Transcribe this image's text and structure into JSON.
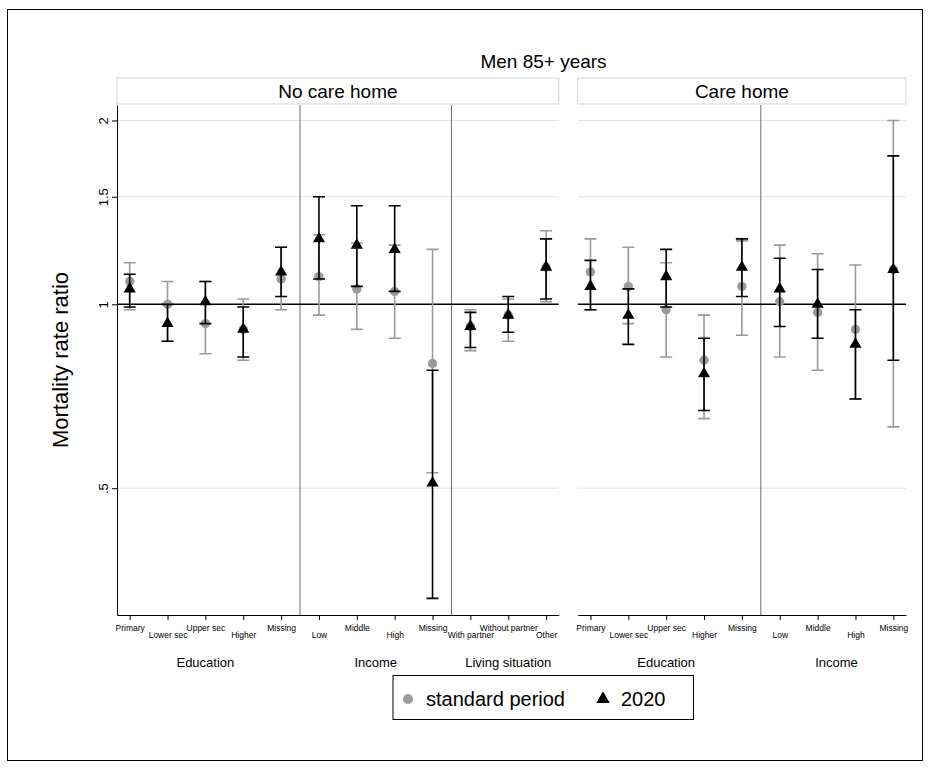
{
  "chart_data": {
    "type": "errorbar",
    "title": "Men 85+ years",
    "y_label": "Mortality rate ratio",
    "log": "y",
    "grid": true,
    "legend": "bottom",
    "ylim": [
      0.31,
      2.12
    ],
    "yticks": [
      {
        "value": 0.5,
        "label": ".5"
      },
      1,
      1.5,
      2
    ],
    "hline": 1,
    "series": [
      {
        "name": "standard period",
        "color": "#9a9a9a",
        "marker": "circle"
      },
      {
        "name": "2020",
        "color": "#000000",
        "marker": "triangle"
      }
    ],
    "panels": [
      {
        "title": "No care home",
        "groups": [
          {
            "label": "Education",
            "categories": [
              "Primary",
              "Lower sec",
              "Upper sec",
              "Higher",
              "Missing"
            ],
            "series": [
              {
                "values": [
                  1.09,
                  1.0,
                  0.93,
                  0.91,
                  1.1
                ],
                "lower": [
                  0.98,
                  0.87,
                  0.83,
                  0.81,
                  0.98
                ],
                "upper": [
                  1.17,
                  1.09,
                  1.09,
                  1.02,
                  1.24
                ]
              },
              {
                "values": [
                  1.06,
                  0.93,
                  1.01,
                  0.91,
                  1.13
                ],
                "lower": [
                  0.99,
                  0.87,
                  0.93,
                  0.82,
                  1.03
                ],
                "upper": [
                  1.12,
                  1.0,
                  1.09,
                  0.99,
                  1.24
                ]
              }
            ]
          },
          {
            "label": "Income",
            "categories": [
              "Low",
              "Middle",
              "High",
              "Missing"
            ],
            "series": [
              {
                "values": [
                  1.11,
                  1.06,
                  1.05,
                  0.8
                ],
                "lower": [
                  0.96,
                  0.91,
                  0.88,
                  0.53
                ],
                "upper": [
                  1.3,
                  1.26,
                  1.25,
                  1.23
                ]
              },
              {
                "values": [
                  1.28,
                  1.25,
                  1.23,
                  0.51
                ],
                "lower": [
                  1.1,
                  1.07,
                  1.05,
                  0.33
                ],
                "upper": [
                  1.5,
                  1.45,
                  1.45,
                  0.78
                ]
              }
            ]
          },
          {
            "label": "Living situation",
            "categories": [
              "With partner",
              "Without partner",
              "Other"
            ],
            "series": [
              {
                "values": [
                  0.92,
                  0.96,
                  1.15
                ],
                "lower": [
                  0.84,
                  0.87,
                  1.01
                ],
                "upper": [
                  0.98,
                  1.02,
                  1.32
                ]
              },
              {
                "values": [
                  0.92,
                  0.96,
                  1.15
                ],
                "lower": [
                  0.85,
                  0.9,
                  1.02
                ],
                "upper": [
                  0.97,
                  1.03,
                  1.28
                ]
              }
            ]
          }
        ]
      },
      {
        "title": "Care home",
        "groups": [
          {
            "label": "Education",
            "categories": [
              "Primary",
              "Lower sec",
              "Upper sec",
              "Higher",
              "Missing"
            ],
            "series": [
              {
                "values": [
                  1.13,
                  1.07,
                  0.98,
                  0.81,
                  1.07
                ],
                "lower": [
                  0.98,
                  0.93,
                  0.82,
                  0.65,
                  0.89
                ],
                "upper": [
                  1.28,
                  1.24,
                  1.17,
                  0.96,
                  1.27
                ]
              },
              {
                "values": [
                  1.07,
                  0.96,
                  1.11,
                  0.77,
                  1.15
                ],
                "lower": [
                  0.98,
                  0.86,
                  0.99,
                  0.67,
                  1.03
                ],
                "upper": [
                  1.18,
                  1.06,
                  1.23,
                  0.88,
                  1.28
                ]
              }
            ]
          },
          {
            "label": "Income",
            "categories": [
              "Low",
              "Middle",
              "High",
              "Missing"
            ],
            "series": [
              {
                "values": [
                  1.01,
                  0.97,
                  0.91,
                  1.14
                ],
                "lower": [
                  0.82,
                  0.78,
                  0.7,
                  0.63
                ],
                "upper": [
                  1.25,
                  1.21,
                  1.16,
                  2.0
                ]
              },
              {
                "values": [
                  1.06,
                  1.0,
                  0.86,
                  1.14
                ],
                "lower": [
                  0.92,
                  0.88,
                  0.7,
                  0.81
                ],
                "upper": [
                  1.19,
                  1.14,
                  0.98,
                  1.75
                ]
              }
            ]
          }
        ]
      }
    ]
  }
}
